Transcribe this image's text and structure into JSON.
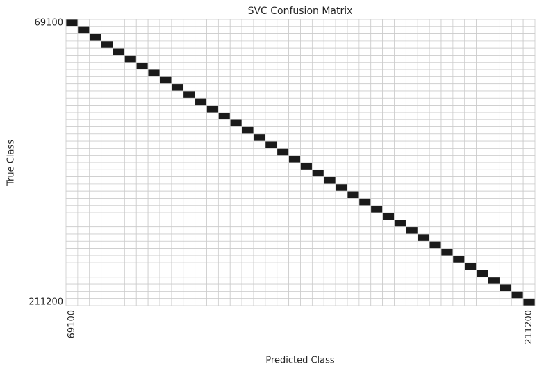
{
  "chart_data": {
    "type": "heatmap",
    "title": "SVC Confusion Matrix",
    "xlabel": "Predicted Class",
    "ylabel": "True Class",
    "categories": [
      "69100",
      null,
      null,
      null,
      null,
      null,
      null,
      null,
      null,
      null,
      null,
      null,
      null,
      null,
      null,
      null,
      null,
      null,
      null,
      null,
      null,
      null,
      null,
      null,
      null,
      null,
      null,
      null,
      null,
      null,
      null,
      null,
      null,
      null,
      null,
      null,
      null,
      null,
      null,
      "211200"
    ],
    "color_low": "#ffffff",
    "color_high": "#1a1a1a",
    "cell_border": "#cccccc",
    "matrix": [
      [
        1,
        0,
        0,
        0,
        0,
        0,
        0,
        0,
        0,
        0,
        0,
        0,
        0,
        0,
        0,
        0,
        0,
        0,
        0,
        0,
        0,
        0,
        0,
        0,
        0,
        0,
        0,
        0,
        0,
        0,
        0,
        0,
        0,
        0,
        0,
        0,
        0,
        0,
        0,
        0
      ],
      [
        0,
        1,
        0,
        0,
        0,
        0,
        0,
        0,
        0,
        0,
        0,
        0,
        0,
        0,
        0,
        0,
        0,
        0,
        0,
        0,
        0,
        0,
        0,
        0,
        0,
        0,
        0,
        0,
        0,
        0,
        0,
        0,
        0,
        0,
        0,
        0,
        0,
        0,
        0,
        0
      ],
      [
        0,
        0,
        1,
        0,
        0,
        0,
        0,
        0,
        0,
        0,
        0,
        0,
        0,
        0,
        0,
        0,
        0,
        0,
        0,
        0,
        0,
        0,
        0,
        0,
        0,
        0,
        0,
        0,
        0,
        0,
        0,
        0,
        0,
        0,
        0,
        0,
        0,
        0,
        0,
        0
      ],
      [
        0,
        0,
        0,
        1,
        0,
        0,
        0,
        0,
        0,
        0,
        0,
        0,
        0,
        0,
        0,
        0,
        0,
        0,
        0,
        0,
        0,
        0,
        0,
        0,
        0,
        0,
        0,
        0,
        0,
        0,
        0,
        0,
        0,
        0,
        0,
        0,
        0,
        0,
        0,
        0
      ],
      [
        0,
        0,
        0,
        0,
        1,
        0,
        0,
        0,
        0,
        0,
        0,
        0,
        0,
        0,
        0,
        0,
        0,
        0,
        0,
        0,
        0,
        0,
        0,
        0,
        0,
        0,
        0,
        0,
        0,
        0,
        0,
        0,
        0,
        0,
        0,
        0,
        0,
        0,
        0,
        0
      ],
      [
        0,
        0,
        0,
        0,
        0,
        1,
        0,
        0,
        0,
        0,
        0,
        0,
        0,
        0,
        0,
        0,
        0,
        0,
        0,
        0,
        0,
        0,
        0,
        0,
        0,
        0,
        0,
        0,
        0,
        0,
        0,
        0,
        0,
        0,
        0,
        0,
        0,
        0,
        0,
        0
      ],
      [
        0,
        0,
        0,
        0,
        0,
        0,
        1,
        0,
        0,
        0,
        0,
        0,
        0,
        0,
        0,
        0,
        0,
        0,
        0,
        0,
        0,
        0,
        0,
        0,
        0,
        0,
        0,
        0,
        0,
        0,
        0,
        0,
        0,
        0,
        0,
        0,
        0,
        0,
        0,
        0
      ],
      [
        0,
        0,
        0,
        0,
        0,
        0,
        0,
        1,
        0,
        0,
        0,
        0,
        0,
        0,
        0,
        0,
        0,
        0,
        0,
        0,
        0,
        0,
        0,
        0,
        0,
        0,
        0,
        0,
        0,
        0,
        0,
        0,
        0,
        0,
        0,
        0,
        0,
        0,
        0,
        0
      ],
      [
        0,
        0,
        0,
        0,
        0,
        0,
        0,
        0,
        1,
        0,
        0,
        0,
        0,
        0,
        0,
        0,
        0,
        0,
        0,
        0,
        0,
        0,
        0,
        0,
        0,
        0,
        0,
        0,
        0,
        0,
        0,
        0,
        0,
        0,
        0,
        0,
        0,
        0,
        0,
        0
      ],
      [
        0,
        0,
        0,
        0,
        0,
        0,
        0,
        0,
        0,
        1,
        0,
        0,
        0,
        0,
        0,
        0,
        0,
        0,
        0,
        0,
        0,
        0,
        0,
        0,
        0,
        0,
        0,
        0,
        0,
        0,
        0,
        0,
        0,
        0,
        0,
        0,
        0,
        0,
        0,
        0
      ],
      [
        0,
        0,
        0,
        0,
        0,
        0,
        0,
        0,
        0,
        0,
        1,
        0,
        0,
        0,
        0,
        0,
        0,
        0,
        0,
        0,
        0,
        0,
        0,
        0,
        0,
        0,
        0,
        0,
        0,
        0,
        0,
        0,
        0,
        0,
        0,
        0,
        0,
        0,
        0,
        0
      ],
      [
        0,
        0,
        0,
        0,
        0,
        0,
        0,
        0,
        0,
        0,
        0,
        1,
        0,
        0,
        0,
        0,
        0,
        0,
        0,
        0,
        0,
        0,
        0,
        0,
        0,
        0,
        0,
        0,
        0,
        0,
        0,
        0,
        0,
        0,
        0,
        0,
        0,
        0,
        0,
        0
      ],
      [
        0,
        0,
        0,
        0,
        0,
        0,
        0,
        0,
        0,
        0,
        0,
        0,
        1,
        0,
        0,
        0,
        0,
        0,
        0,
        0,
        0,
        0,
        0,
        0,
        0,
        0,
        0,
        0,
        0,
        0,
        0,
        0,
        0,
        0,
        0,
        0,
        0,
        0,
        0,
        0
      ],
      [
        0,
        0,
        0,
        0,
        0,
        0,
        0,
        0,
        0,
        0,
        0,
        0,
        0,
        1,
        0,
        0,
        0,
        0,
        0,
        0,
        0,
        0,
        0,
        0,
        0,
        0,
        0,
        0,
        0,
        0,
        0,
        0,
        0,
        0,
        0,
        0,
        0,
        0,
        0,
        0
      ],
      [
        0,
        0,
        0,
        0,
        0,
        0,
        0,
        0,
        0,
        0,
        0,
        0,
        0,
        0,
        1,
        0,
        0,
        0,
        0,
        0,
        0,
        0,
        0,
        0,
        0,
        0,
        0,
        0,
        0,
        0,
        0,
        0,
        0,
        0,
        0,
        0,
        0,
        0,
        0,
        0
      ],
      [
        0,
        0,
        0,
        0,
        0,
        0,
        0,
        0,
        0,
        0,
        0,
        0,
        0,
        0,
        0,
        1,
        0,
        0,
        0,
        0,
        0,
        0,
        0,
        0,
        0,
        0,
        0,
        0,
        0,
        0,
        0,
        0,
        0,
        0,
        0,
        0,
        0,
        0,
        0,
        0
      ],
      [
        0,
        0,
        0,
        0,
        0,
        0,
        0,
        0,
        0,
        0,
        0,
        0,
        0,
        0,
        0,
        0,
        1,
        0,
        0,
        0,
        0,
        0,
        0,
        0,
        0,
        0,
        0,
        0,
        0,
        0,
        0,
        0,
        0,
        0,
        0,
        0,
        0,
        0,
        0,
        0
      ],
      [
        0,
        0,
        0,
        0,
        0,
        0,
        0,
        0,
        0,
        0,
        0,
        0,
        0,
        0,
        0,
        0,
        0,
        1,
        0,
        0,
        0,
        0,
        0,
        0,
        0,
        0,
        0,
        0,
        0,
        0,
        0,
        0,
        0,
        0,
        0,
        0,
        0,
        0,
        0,
        0
      ],
      [
        0,
        0,
        0,
        0,
        0,
        0,
        0,
        0,
        0,
        0,
        0,
        0,
        0,
        0,
        0,
        0,
        0,
        0,
        1,
        0,
        0,
        0,
        0,
        0,
        0,
        0,
        0,
        0,
        0,
        0,
        0,
        0,
        0,
        0,
        0,
        0,
        0,
        0,
        0,
        0
      ],
      [
        0,
        0,
        0,
        0,
        0,
        0,
        0,
        0,
        0,
        0,
        0,
        0,
        0,
        0,
        0,
        0,
        0,
        0,
        0,
        1,
        0,
        0,
        0,
        0,
        0,
        0,
        0,
        0,
        0,
        0,
        0,
        0,
        0,
        0,
        0,
        0,
        0,
        0,
        0,
        0
      ],
      [
        0,
        0,
        0,
        0,
        0,
        0,
        0,
        0,
        0,
        0,
        0,
        0,
        0,
        0,
        0,
        0,
        0,
        0,
        0,
        0,
        1,
        0,
        0,
        0,
        0,
        0,
        0,
        0,
        0,
        0,
        0,
        0,
        0,
        0,
        0,
        0,
        0,
        0,
        0,
        0
      ],
      [
        0,
        0,
        0,
        0,
        0,
        0,
        0,
        0,
        0,
        0,
        0,
        0,
        0,
        0,
        0,
        0,
        0,
        0,
        0,
        0,
        0,
        1,
        0,
        0,
        0,
        0,
        0,
        0,
        0,
        0,
        0,
        0,
        0,
        0,
        0,
        0,
        0,
        0,
        0,
        0
      ],
      [
        0,
        0,
        0,
        0,
        0,
        0,
        0,
        0,
        0,
        0,
        0,
        0,
        0,
        0,
        0,
        0,
        0,
        0,
        0,
        0,
        0,
        0,
        1,
        0,
        0,
        0,
        0,
        0,
        0,
        0,
        0,
        0,
        0,
        0,
        0,
        0,
        0,
        0,
        0,
        0
      ],
      [
        0,
        0,
        0,
        0,
        0,
        0,
        0,
        0,
        0,
        0,
        0,
        0,
        0,
        0,
        0,
        0,
        0,
        0,
        0,
        0,
        0,
        0,
        0,
        1,
        0,
        0,
        0,
        0,
        0,
        0,
        0,
        0,
        0,
        0,
        0,
        0,
        0,
        0,
        0,
        0
      ],
      [
        0,
        0,
        0,
        0,
        0,
        0,
        0,
        0,
        0,
        0,
        0,
        0,
        0,
        0,
        0,
        0,
        0,
        0,
        0,
        0,
        0,
        0,
        0,
        0,
        1,
        0,
        0,
        0,
        0,
        0,
        0,
        0,
        0,
        0,
        0,
        0,
        0,
        0,
        0,
        0
      ],
      [
        0,
        0,
        0,
        0,
        0,
        0,
        0,
        0,
        0,
        0,
        0,
        0,
        0,
        0,
        0,
        0,
        0,
        0,
        0,
        0,
        0,
        0,
        0,
        0,
        0,
        1,
        0,
        0,
        0,
        0,
        0,
        0,
        0,
        0,
        0,
        0,
        0,
        0,
        0,
        0
      ],
      [
        0,
        0,
        0,
        0,
        0,
        0,
        0,
        0,
        0,
        0,
        0,
        0,
        0,
        0,
        0,
        0,
        0,
        0,
        0,
        0,
        0,
        0,
        0,
        0,
        0,
        0,
        1,
        0,
        0,
        0,
        0,
        0,
        0,
        0,
        0,
        0,
        0,
        0,
        0,
        0
      ],
      [
        0,
        0,
        0,
        0,
        0,
        0,
        0,
        0,
        0,
        0,
        0,
        0,
        0,
        0,
        0,
        0,
        0,
        0,
        0,
        0,
        0,
        0,
        0,
        0,
        0,
        0,
        0,
        1,
        0,
        0,
        0,
        0,
        0,
        0,
        0,
        0,
        0,
        0,
        0,
        0
      ],
      [
        0,
        0,
        0,
        0,
        0,
        0,
        0,
        0,
        0,
        0,
        0,
        0,
        0,
        0,
        0,
        0,
        0,
        0,
        0,
        0,
        0,
        0,
        0,
        0,
        0,
        0,
        0,
        0,
        1,
        0,
        0,
        0,
        0,
        0,
        0,
        0,
        0,
        0,
        0,
        0
      ],
      [
        0,
        0,
        0,
        0,
        0,
        0,
        0,
        0,
        0,
        0,
        0,
        0,
        0,
        0,
        0,
        0,
        0,
        0,
        0,
        0,
        0,
        0,
        0,
        0,
        0,
        0,
        0,
        0,
        0,
        1,
        0,
        0,
        0,
        0,
        0,
        0,
        0,
        0,
        0,
        0
      ],
      [
        0,
        0,
        0,
        0,
        0,
        0,
        0,
        0,
        0,
        0,
        0,
        0,
        0,
        0,
        0,
        0,
        0,
        0,
        0,
        0,
        0,
        0,
        0,
        0,
        0,
        0,
        0,
        0,
        0,
        0,
        1,
        0,
        0,
        0,
        0,
        0,
        0,
        0,
        0,
        0
      ],
      [
        0,
        0,
        0,
        0,
        0,
        0,
        0,
        0,
        0,
        0,
        0,
        0,
        0,
        0,
        0,
        0,
        0,
        0,
        0,
        0,
        0,
        0,
        0,
        0,
        0,
        0,
        0,
        0,
        0,
        0,
        0,
        1,
        0,
        0,
        0,
        0,
        0,
        0,
        0,
        0
      ],
      [
        0,
        0,
        0,
        0,
        0,
        0,
        0,
        0,
        0,
        0,
        0,
        0,
        0,
        0,
        0,
        0,
        0,
        0,
        0,
        0,
        0,
        0,
        0,
        0,
        0,
        0,
        0,
        0,
        0,
        0,
        0,
        0,
        1,
        0,
        0,
        0,
        0,
        0,
        0,
        0
      ],
      [
        0,
        0,
        0,
        0,
        0,
        0,
        0,
        0,
        0,
        0,
        0,
        0,
        0,
        0,
        0,
        0,
        0,
        0,
        0,
        0,
        0,
        0,
        0,
        0,
        0,
        0,
        0,
        0,
        0,
        0,
        0,
        0,
        0,
        1,
        0,
        0,
        0,
        0,
        0,
        0
      ],
      [
        0,
        0,
        0,
        0,
        0,
        0,
        0,
        0,
        0,
        0,
        0,
        0,
        0,
        0,
        0,
        0,
        0,
        0,
        0,
        0,
        0,
        0,
        0,
        0,
        0,
        0,
        0,
        0,
        0,
        0,
        0,
        0,
        0,
        0,
        1,
        0,
        0,
        0,
        0,
        0
      ],
      [
        0,
        0,
        0,
        0,
        0,
        0,
        0,
        0,
        0,
        0,
        0,
        0,
        0,
        0,
        0,
        0,
        0,
        0,
        0,
        0,
        0,
        0,
        0,
        0,
        0,
        0,
        0,
        0,
        0,
        0,
        0,
        0,
        0,
        0,
        0,
        1,
        0,
        0,
        0,
        0
      ],
      [
        0,
        0,
        0,
        0,
        0,
        0,
        0,
        0,
        0,
        0,
        0,
        0,
        0,
        0,
        0,
        0,
        0,
        0,
        0,
        0,
        0,
        0,
        0,
        0,
        0,
        0,
        0,
        0,
        0,
        0,
        0,
        0,
        0,
        0,
        0,
        0,
        1,
        0,
        0,
        0
      ],
      [
        0,
        0,
        0,
        0,
        0,
        0,
        0,
        0,
        0,
        0,
        0,
        0,
        0,
        0,
        0,
        0,
        0,
        0,
        0,
        0,
        0,
        0,
        0,
        0,
        0,
        0,
        0,
        0,
        0,
        0,
        0,
        0,
        0,
        0,
        0,
        0,
        0,
        1,
        0,
        0
      ],
      [
        0,
        0,
        0,
        0,
        0,
        0,
        0,
        0,
        0,
        0,
        0,
        0,
        0,
        0,
        0,
        0,
        0,
        0,
        0,
        0,
        0,
        0,
        0,
        0,
        0,
        0,
        0,
        0,
        0,
        0,
        0,
        0,
        0,
        0,
        0,
        0,
        0,
        0,
        1,
        0
      ],
      [
        0,
        0,
        0,
        0,
        0,
        0,
        0,
        0,
        0,
        0,
        0,
        0,
        0,
        0,
        0,
        0,
        0,
        0,
        0,
        0,
        0,
        0,
        0,
        0,
        0,
        0,
        0,
        0,
        0,
        0,
        0,
        0,
        0,
        0,
        0,
        0,
        0,
        0,
        0,
        1
      ]
    ]
  }
}
